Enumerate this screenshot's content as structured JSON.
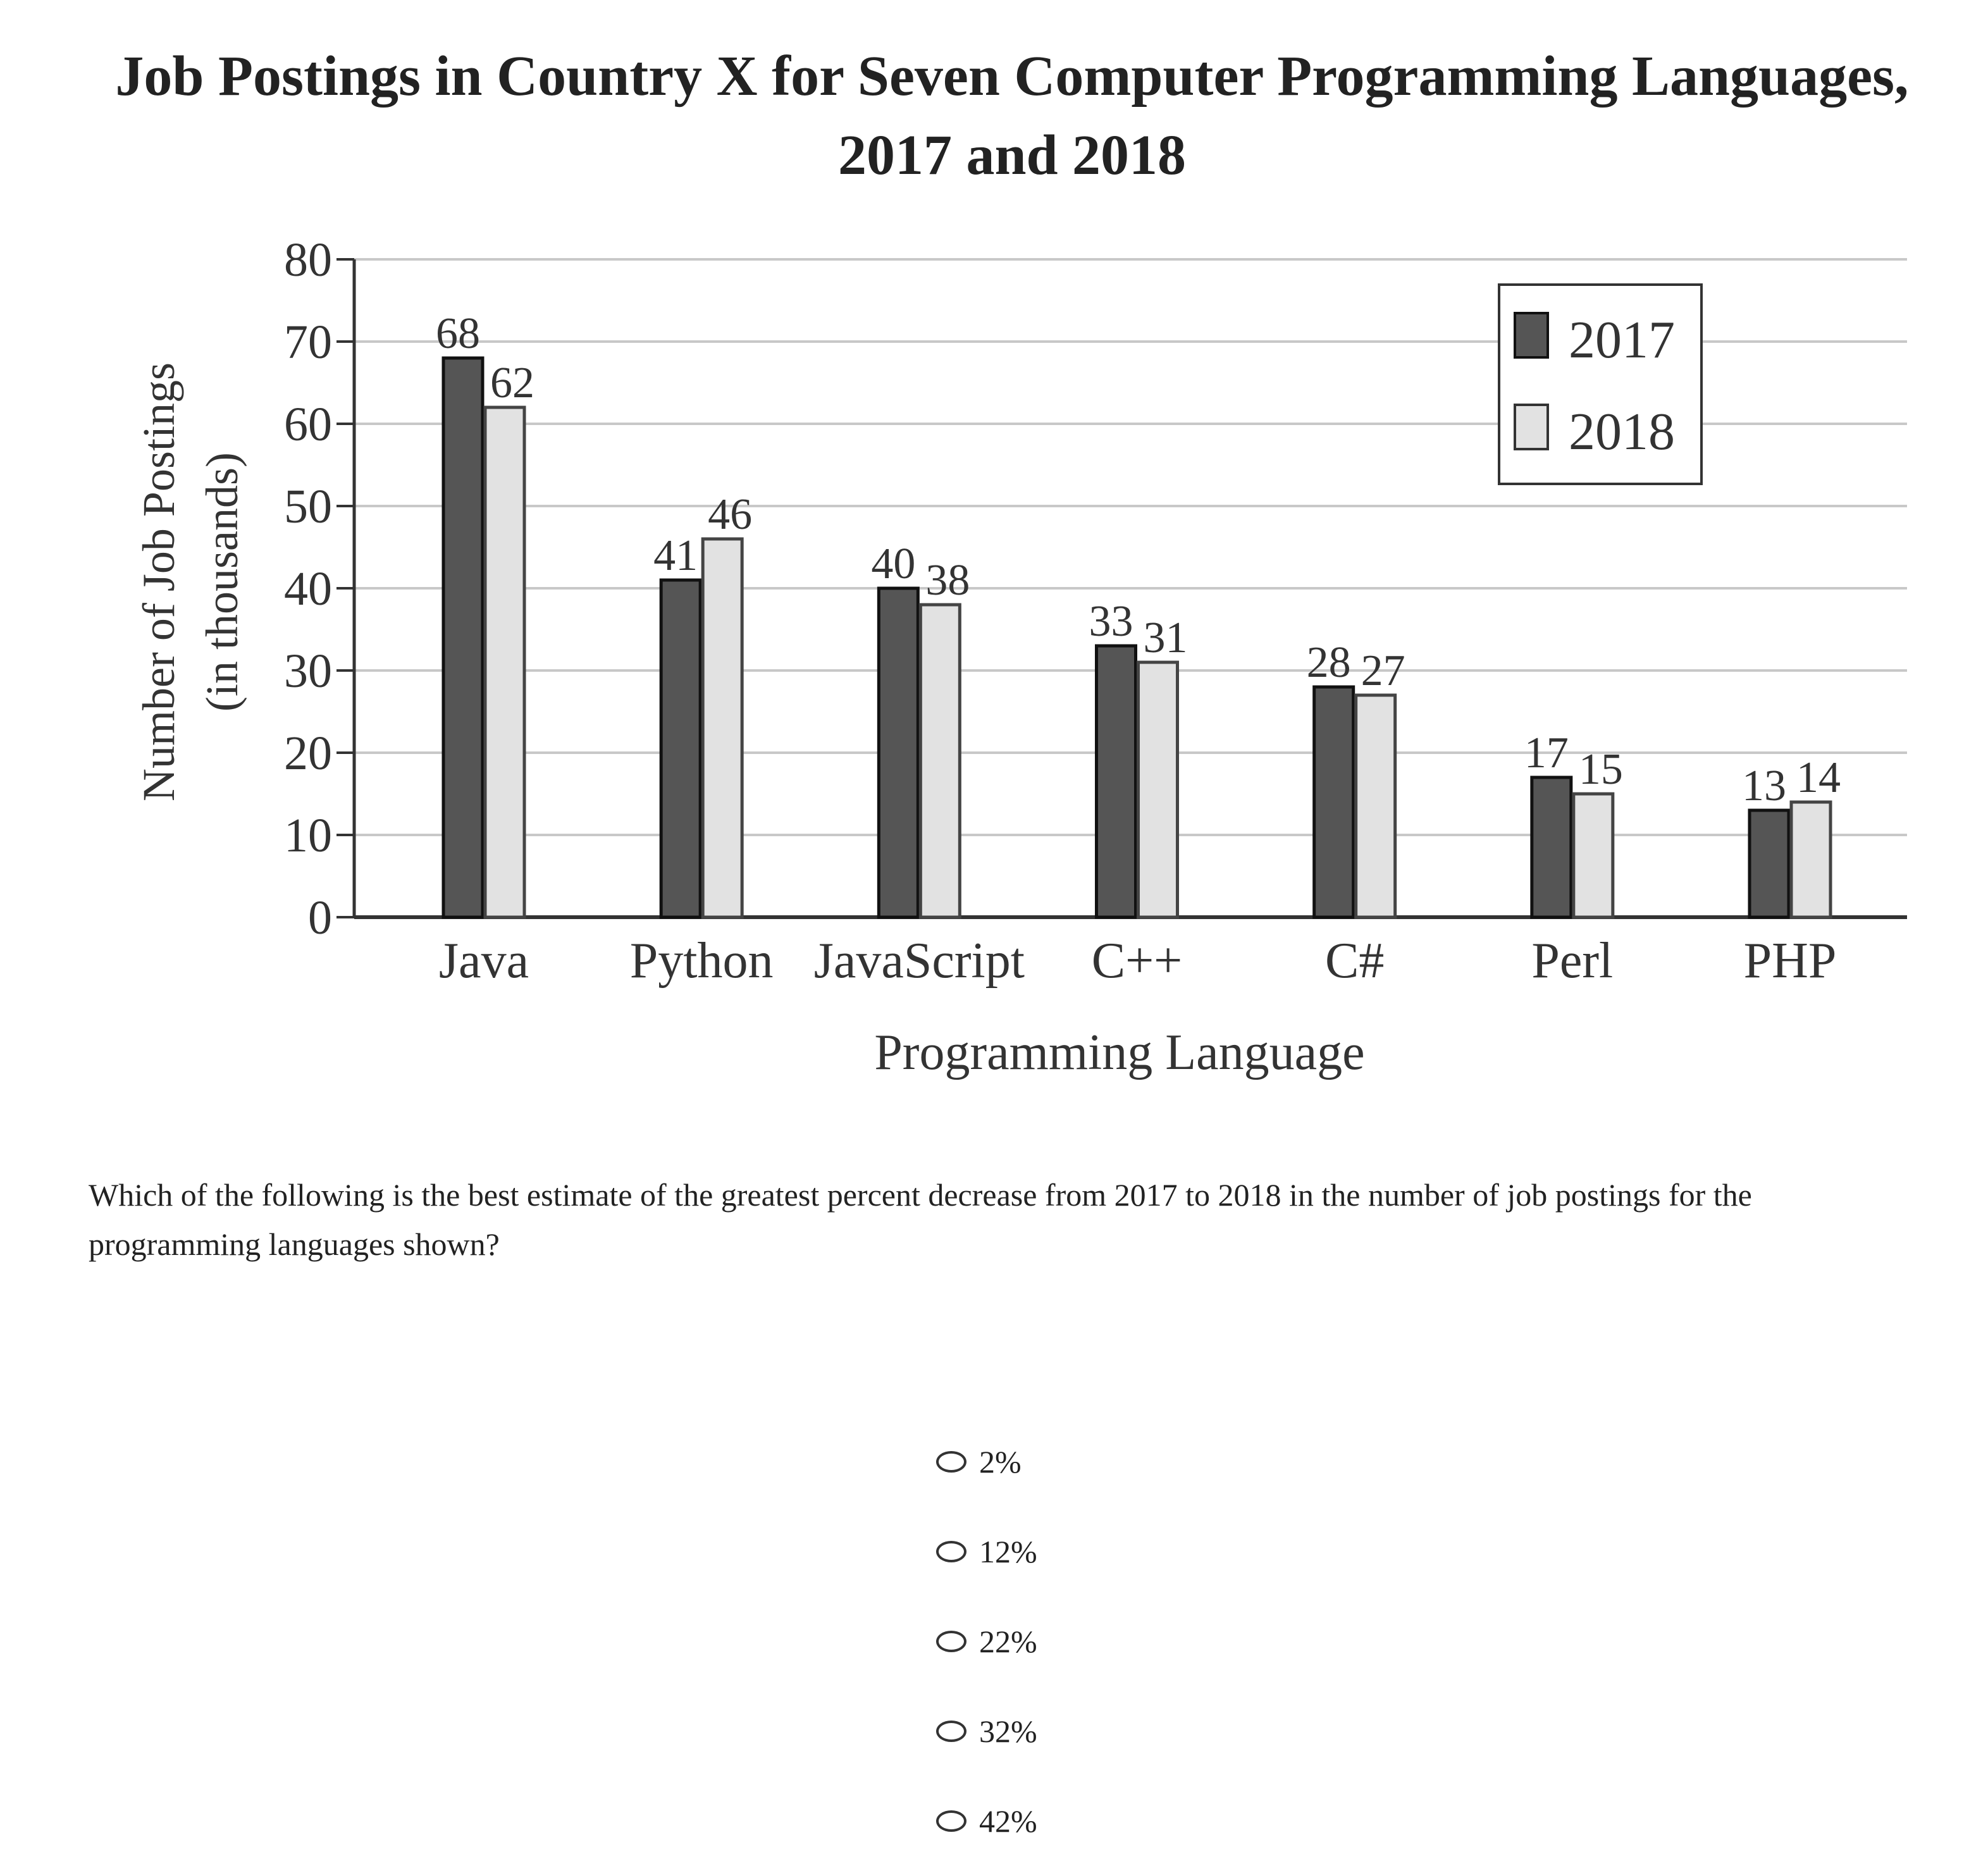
{
  "chart_data": {
    "type": "bar",
    "title": "Job Postings in Country X for Seven Computer Programming Languages,",
    "subtitle": "2017 and 2018",
    "xlabel": "Programming Language",
    "ylabel": "Number of Job Postings",
    "ylabel_sub": "(in thousands)",
    "categories": [
      "Java",
      "Python",
      "JavaScript",
      "C++",
      "C#",
      "Perl",
      "PHP"
    ],
    "series": [
      {
        "name": "2017",
        "values": [
          68,
          41,
          40,
          33,
          28,
          17,
          13
        ],
        "color": "#555555"
      },
      {
        "name": "2018",
        "values": [
          62,
          46,
          38,
          31,
          27,
          15,
          14
        ],
        "color": "#e2e2e2"
      }
    ],
    "yticks": [
      0,
      10,
      20,
      30,
      40,
      50,
      60,
      70,
      80
    ],
    "ylim": [
      0,
      80
    ],
    "grid": true,
    "legend_position": "top-right"
  },
  "question": {
    "text": "Which of the following is the best estimate of the greatest percent decrease from 2017 to 2018 in the number of job postings for the programming languages shown?",
    "options": [
      "2%",
      "12%",
      "22%",
      "32%",
      "42%"
    ]
  }
}
